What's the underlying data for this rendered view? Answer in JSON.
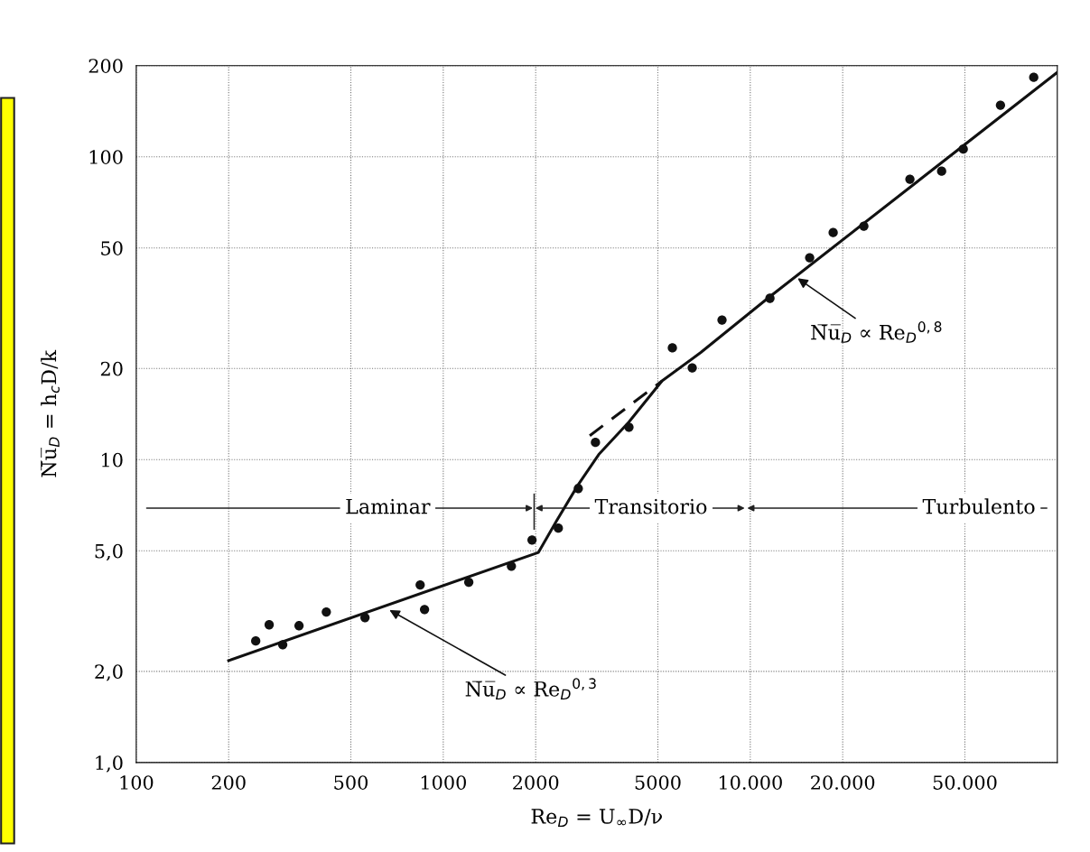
{
  "chart_data": {
    "type": "scatter",
    "xlabel": "Re$_{D}$ = U$_{∞}$D/ν",
    "ylabel": "N̅u̅$_{D}$ = h$_{c}$D/k",
    "log": "xy",
    "grid": true,
    "marker": "circle",
    "xlim": [
      100,
      100000
    ],
    "ylim": [
      1,
      200
    ],
    "xticks": [
      100,
      200,
      500,
      1000,
      2000,
      5000,
      {
        "value": 10000,
        "label": "10.000"
      },
      {
        "value": 20000,
        "label": "20.000"
      },
      {
        "value": 50000,
        "label": "50.000"
      }
    ],
    "yticks": [
      {
        "value": 1,
        "label": "1,0"
      },
      {
        "value": 2,
        "label": "2,0"
      },
      {
        "value": 5,
        "label": "5,0"
      },
      10,
      20,
      50,
      100,
      200
    ],
    "series": [
      {
        "color": "#111111",
        "x": [
          245,
          271,
          300,
          339,
          416,
          556,
          841,
          869,
          1211,
          1667,
          1946,
          2370,
          2753,
          3131,
          4026,
          5575,
          6470,
          8090,
          11590,
          15610,
          18620,
          23440,
          33110,
          42000,
          49400,
          65300,
          83800
        ],
        "values": [
          2.52,
          2.85,
          2.45,
          2.83,
          3.14,
          3.01,
          3.86,
          3.2,
          3.94,
          4.45,
          5.43,
          5.94,
          8.03,
          11.4,
          12.8,
          23.4,
          20.1,
          28.9,
          34.1,
          46.4,
          56.2,
          59.0,
          84.3,
          89.6,
          106,
          148,
          183
        ]
      },
      {
        "type": "line",
        "marker": "none",
        "color": "#111111",
        "line_style": "solid",
        "x": [
          200,
          2042,
          2340,
          2750,
          3210,
          4020,
          5160,
          6900,
          11400,
          100000
        ],
        "values": [
          2.17,
          4.94,
          6.28,
          8.26,
          10.4,
          13.3,
          18.2,
          22.6,
          34.1,
          190
        ]
      },
      {
        "type": "line",
        "marker": "none",
        "color": "#111111",
        "line_style": "dashed",
        "x": [
          3000,
          5160
        ],
        "values": [
          12.0,
          18.2
        ]
      }
    ],
    "annotations": [
      {
        "text": "N̅u̅$_{D}$ ∝ Re$_{D}$$^{0,3}$",
        "x": 668,
        "y": 3.19
      },
      {
        "text": "N̅u̅$_{D}$ ∝ Re$_{D}$$^{0,8}$",
        "x": 14260,
        "y": 39.7
      },
      "Laminar",
      "Transitorio",
      "Turbulento"
    ]
  }
}
